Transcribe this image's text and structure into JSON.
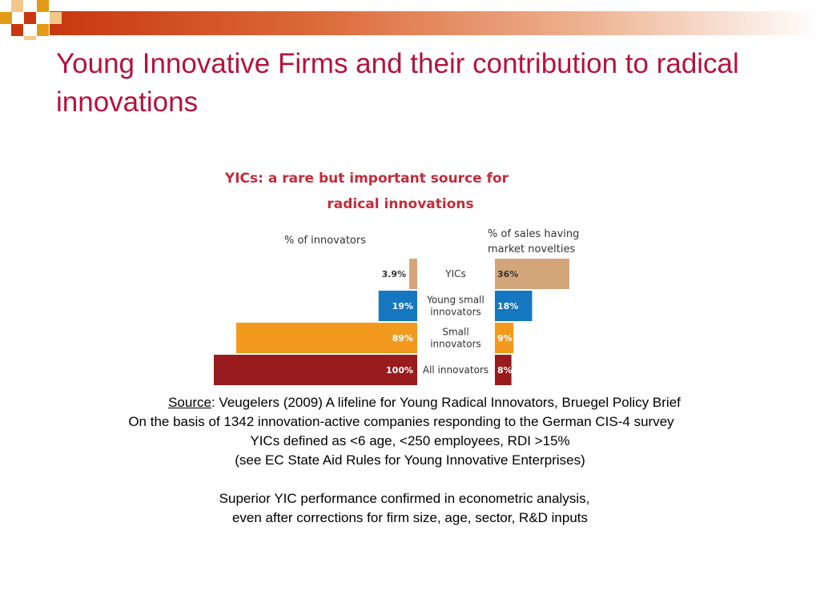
{
  "slide": {
    "title": "Young Innovative Firms and their contribution to radical innovations",
    "accent_colors": [
      "#c8370f",
      "#e39b17",
      "#b5123e"
    ]
  },
  "chart_data": {
    "type": "bar",
    "title_line1": "YICs: a rare but important source for",
    "title_line2": "radical innovations",
    "left_axis_label": "% of innovators",
    "right_axis_label_line1": "% of sales having",
    "right_axis_label_line2": "market novelties",
    "categories": [
      "YICs",
      "Young small innovators",
      "Small innovators",
      "All innovators"
    ],
    "category_labels": [
      [
        "YICs"
      ],
      [
        "Young small",
        "innovators"
      ],
      [
        "Small",
        "innovators"
      ],
      [
        "All innovators"
      ]
    ],
    "colors": [
      "#d2a57b",
      "#1577bf",
      "#f39a1e",
      "#991b1e"
    ],
    "series": [
      {
        "name": "% of innovators",
        "values": [
          3.9,
          19,
          89,
          100
        ],
        "labels": [
          "3.9%",
          "19%",
          "89%",
          "100%"
        ],
        "xlim": [
          0,
          100
        ]
      },
      {
        "name": "% of sales having market novelties",
        "values": [
          36,
          18,
          9,
          8
        ],
        "labels": [
          "36%",
          "18%",
          "9%",
          "8%"
        ],
        "xlim": [
          0,
          36
        ]
      }
    ]
  },
  "notes": {
    "source_label": "Source",
    "source_text": ": Veugelers (2009) A lifeline for Young Radical Innovators, Bruegel Policy  Brief",
    "line2": "On the basis of 1342 innovation-active companies responding to the German CIS-4 survey",
    "line3": "YICs defined as <6 age, <250 employees, RDI >15%",
    "line4": "(see EC State Aid Rules for Young Innovative Enterprises)",
    "line5": "Superior YIC performance confirmed in econometric analysis,",
    "line6": "even after corrections for firm size, age, sector, R&D inputs"
  }
}
